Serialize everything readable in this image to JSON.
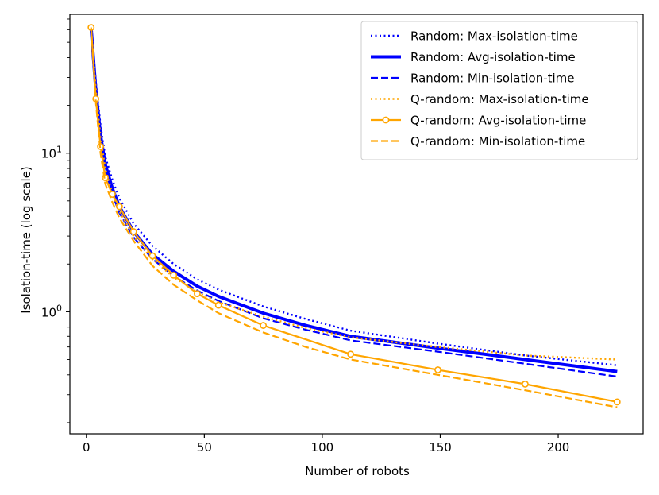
{
  "chart_data": {
    "type": "line",
    "title": "",
    "xlabel": "Number of robots",
    "ylabel": "Isolation-time (log scale)",
    "yscale": "log",
    "xlim": [
      -7,
      236
    ],
    "ylim": [
      0.17,
      75
    ],
    "grid": false,
    "legend_position": "top-right",
    "x_ticks": [
      {
        "value": 0,
        "label": "0"
      },
      {
        "value": 50,
        "label": "50"
      },
      {
        "value": 100,
        "label": "100"
      },
      {
        "value": 150,
        "label": "150"
      },
      {
        "value": 200,
        "label": "200"
      }
    ],
    "y_major_ticks": [
      {
        "value": 1,
        "base": "10",
        "exp": "0"
      },
      {
        "value": 10,
        "base": "10",
        "exp": "1"
      }
    ],
    "y_minor_ticks": [
      0.2,
      0.3,
      0.4,
      0.5,
      0.6,
      0.7,
      0.8,
      0.9,
      2,
      3,
      4,
      5,
      6,
      7,
      8,
      9,
      20,
      30,
      40,
      50,
      60,
      70
    ],
    "series": [
      {
        "name": "Random: Max-isolation-time",
        "color": "#0000ff",
        "line_style": "dotted",
        "line_weight": "normal",
        "marker": "none",
        "x": [
          2,
          4,
          6,
          8,
          11,
          14,
          20,
          28,
          37,
          47,
          56,
          75,
          93,
          112,
          149,
          186,
          225
        ],
        "y": [
          62,
          28,
          15,
          9.5,
          6.8,
          5.2,
          3.6,
          2.6,
          2.0,
          1.6,
          1.38,
          1.08,
          0.9,
          0.76,
          0.63,
          0.53,
          0.46
        ]
      },
      {
        "name": "Random: Avg-isolation-time",
        "color": "#0000ff",
        "line_style": "solid",
        "line_weight": "bold",
        "marker": "none",
        "x": [
          2,
          4,
          6,
          8,
          11,
          14,
          20,
          28,
          37,
          47,
          56,
          75,
          93,
          112,
          149,
          186,
          225
        ],
        "y": [
          62,
          25,
          13,
          8.5,
          6.0,
          4.6,
          3.2,
          2.3,
          1.8,
          1.45,
          1.25,
          0.98,
          0.82,
          0.7,
          0.59,
          0.5,
          0.42
        ]
      },
      {
        "name": "Random: Min-isolation-time",
        "color": "#0000ff",
        "line_style": "dashed",
        "line_weight": "normal",
        "marker": "none",
        "x": [
          2,
          4,
          6,
          8,
          11,
          14,
          20,
          28,
          37,
          47,
          56,
          75,
          93,
          112,
          149,
          186,
          225
        ],
        "y": [
          62,
          23,
          12,
          7.7,
          5.5,
          4.2,
          2.95,
          2.15,
          1.68,
          1.36,
          1.17,
          0.91,
          0.77,
          0.66,
          0.56,
          0.47,
          0.39
        ]
      },
      {
        "name": "Q-random: Max-isolation-time",
        "color": "#ffa500",
        "line_style": "dotted",
        "line_weight": "normal",
        "marker": "none",
        "x": [
          2,
          4,
          6,
          8,
          11,
          14,
          20,
          28,
          37,
          47,
          56,
          75,
          93,
          112,
          149,
          186,
          225
        ],
        "y": [
          62,
          25,
          12.5,
          8.0,
          5.6,
          4.3,
          3.0,
          2.15,
          1.65,
          1.33,
          1.15,
          0.93,
          0.79,
          0.69,
          0.6,
          0.53,
          0.5
        ]
      },
      {
        "name": "Q-random: Avg-isolation-time",
        "color": "#ffa500",
        "line_style": "solid",
        "line_weight": "normal",
        "marker": "circle-open",
        "x": [
          2,
          4,
          6,
          8,
          11,
          14,
          20,
          28,
          37,
          47,
          56,
          75,
          112,
          149,
          186,
          225
        ],
        "y": [
          62,
          22,
          11,
          7.0,
          5.5,
          4.6,
          3.2,
          2.25,
          1.7,
          1.3,
          1.1,
          0.82,
          0.54,
          0.43,
          0.35,
          0.27
        ]
      },
      {
        "name": "Q-random: Min-isolation-time",
        "color": "#ffa500",
        "line_style": "dashed",
        "line_weight": "normal",
        "marker": "none",
        "x": [
          2,
          4,
          6,
          8,
          11,
          14,
          20,
          28,
          37,
          47,
          56,
          75,
          93,
          112,
          149,
          186,
          225
        ],
        "y": [
          62,
          21,
          10,
          6.4,
          4.9,
          3.9,
          2.8,
          1.95,
          1.48,
          1.18,
          0.98,
          0.74,
          0.6,
          0.5,
          0.4,
          0.32,
          0.25
        ]
      }
    ]
  }
}
